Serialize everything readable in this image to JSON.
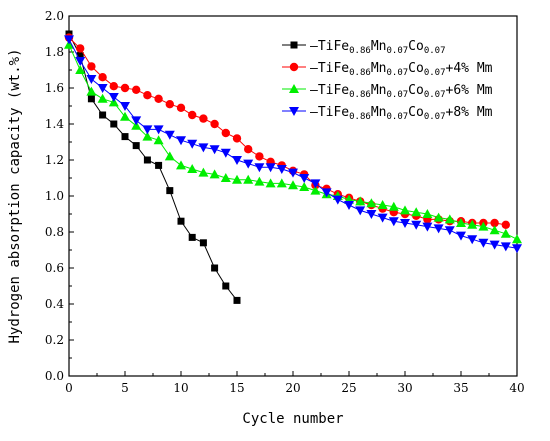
{
  "chart_data": {
    "type": "line",
    "title": "",
    "xlabel": "Cycle number",
    "ylabel": "Hydrogen absorption capacity (wt.%)",
    "xlim": [
      0,
      40
    ],
    "ylim": [
      0.0,
      2.0
    ],
    "x_ticks": [
      0,
      5,
      10,
      15,
      20,
      25,
      30,
      35,
      40
    ],
    "x_tick_labels": [
      "0",
      "5",
      "10",
      "15",
      "20",
      "25",
      "30",
      "35",
      "40"
    ],
    "y_ticks": [
      0.0,
      0.2,
      0.4,
      0.6,
      0.8,
      1.0,
      1.2,
      1.4,
      1.6,
      1.8,
      2.0
    ],
    "y_tick_labels": [
      "0.0",
      "0.2",
      "0.4",
      "0.6",
      "0.8",
      "1.0",
      "1.2",
      "1.4",
      "1.6",
      "1.8",
      "2.0"
    ],
    "grid": false,
    "legend_position": "top-right",
    "series": [
      {
        "name": "TiFe0.86Mn0.07Co0.07",
        "legend_parts": [
          [
            "TiFe",
            ""
          ],
          [
            "0.86",
            "sub"
          ],
          [
            "Mn",
            ""
          ],
          [
            "0.07",
            "sub"
          ],
          [
            "Co",
            ""
          ],
          [
            "0.07",
            "sub"
          ]
        ],
        "color": "#000000",
        "marker": "square",
        "x": [
          0,
          1,
          2,
          3,
          4,
          5,
          6,
          7,
          8,
          9,
          10,
          11,
          12,
          13,
          14,
          15
        ],
        "y": [
          1.9,
          1.78,
          1.54,
          1.45,
          1.4,
          1.33,
          1.28,
          1.2,
          1.17,
          1.03,
          0.86,
          0.77,
          0.74,
          0.6,
          0.5,
          0.42
        ]
      },
      {
        "name": "TiFe0.86Mn0.07Co0.07+4% Mm",
        "legend_parts": [
          [
            "TiFe",
            ""
          ],
          [
            "0.86",
            "sub"
          ],
          [
            "Mn",
            ""
          ],
          [
            "0.07",
            "sub"
          ],
          [
            "Co",
            ""
          ],
          [
            "0.07",
            "sub"
          ],
          [
            "+4% Mm",
            ""
          ]
        ],
        "color": "#ff0000",
        "marker": "circle",
        "x": [
          0,
          1,
          2,
          3,
          4,
          5,
          6,
          7,
          8,
          9,
          10,
          11,
          12,
          13,
          14,
          15,
          16,
          17,
          18,
          19,
          20,
          21,
          22,
          23,
          24,
          25,
          26,
          27,
          28,
          29,
          30,
          31,
          32,
          33,
          34,
          35,
          36,
          37,
          38,
          39
        ],
        "y": [
          1.88,
          1.82,
          1.72,
          1.66,
          1.61,
          1.6,
          1.59,
          1.56,
          1.54,
          1.51,
          1.49,
          1.45,
          1.43,
          1.4,
          1.35,
          1.32,
          1.26,
          1.22,
          1.19,
          1.17,
          1.14,
          1.12,
          1.06,
          1.04,
          1.01,
          0.99,
          0.97,
          0.95,
          0.93,
          0.91,
          0.9,
          0.89,
          0.87,
          0.87,
          0.86,
          0.86,
          0.85,
          0.85,
          0.85,
          0.84
        ]
      },
      {
        "name": "TiFe0.86Mn0.07Co0.07+6% Mm",
        "legend_parts": [
          [
            "TiFe",
            ""
          ],
          [
            "0.86",
            "sub"
          ],
          [
            "Mn",
            ""
          ],
          [
            "0.07",
            "sub"
          ],
          [
            "Co",
            ""
          ],
          [
            "0.07",
            "sub"
          ],
          [
            "+6% Mm",
            ""
          ]
        ],
        "color": "#00ee00",
        "marker": "triangle-up",
        "x": [
          0,
          1,
          2,
          3,
          4,
          5,
          6,
          7,
          8,
          9,
          10,
          11,
          12,
          13,
          14,
          15,
          16,
          17,
          18,
          19,
          20,
          21,
          22,
          23,
          24,
          25,
          26,
          27,
          28,
          29,
          30,
          31,
          32,
          33,
          34,
          35,
          36,
          37,
          38,
          39,
          40
        ],
        "y": [
          1.84,
          1.7,
          1.58,
          1.54,
          1.52,
          1.44,
          1.39,
          1.33,
          1.31,
          1.22,
          1.17,
          1.15,
          1.13,
          1.12,
          1.1,
          1.09,
          1.09,
          1.08,
          1.07,
          1.07,
          1.06,
          1.05,
          1.03,
          1.01,
          1.0,
          0.98,
          0.97,
          0.96,
          0.95,
          0.94,
          0.92,
          0.91,
          0.9,
          0.88,
          0.87,
          0.85,
          0.84,
          0.83,
          0.81,
          0.79,
          0.76
        ]
      },
      {
        "name": "TiFe0.86Mn0.07Co0.07+8% Mm",
        "legend_parts": [
          [
            "TiFe",
            ""
          ],
          [
            "0.86",
            "sub"
          ],
          [
            "Mn",
            ""
          ],
          [
            "0.07",
            "sub"
          ],
          [
            "Co",
            ""
          ],
          [
            "0.07",
            "sub"
          ],
          [
            "+8% Mm",
            ""
          ]
        ],
        "color": "#0000ff",
        "marker": "triangle-down",
        "x": [
          0,
          1,
          2,
          3,
          4,
          5,
          6,
          7,
          8,
          9,
          10,
          11,
          12,
          13,
          14,
          15,
          16,
          17,
          18,
          19,
          20,
          21,
          22,
          23,
          24,
          25,
          26,
          27,
          28,
          29,
          30,
          31,
          32,
          33,
          34,
          35,
          36,
          37,
          38,
          39,
          40
        ],
        "y": [
          1.87,
          1.75,
          1.65,
          1.6,
          1.55,
          1.5,
          1.42,
          1.37,
          1.37,
          1.34,
          1.31,
          1.29,
          1.27,
          1.26,
          1.24,
          1.2,
          1.18,
          1.16,
          1.16,
          1.15,
          1.13,
          1.1,
          1.07,
          1.02,
          0.98,
          0.95,
          0.92,
          0.9,
          0.88,
          0.86,
          0.85,
          0.84,
          0.83,
          0.82,
          0.81,
          0.78,
          0.76,
          0.74,
          0.73,
          0.72,
          0.71
        ]
      }
    ]
  }
}
